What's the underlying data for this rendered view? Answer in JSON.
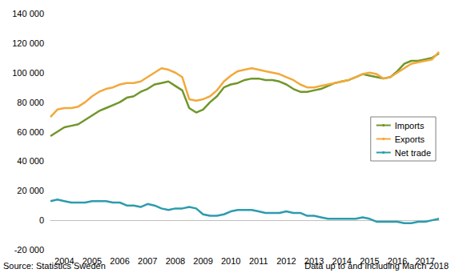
{
  "chart_data": {
    "type": "line",
    "source": "Source: Statistics Sweden",
    "note": "Data up to and including March 2018",
    "categories": [
      null,
      null,
      "2004",
      null,
      null,
      null,
      "2005",
      null,
      null,
      null,
      "2006",
      null,
      null,
      null,
      "2007",
      null,
      null,
      null,
      "2008",
      null,
      null,
      null,
      "2009",
      null,
      null,
      null,
      "2010",
      null,
      null,
      null,
      "2011",
      null,
      null,
      null,
      "2012",
      null,
      null,
      null,
      "2013",
      null,
      null,
      null,
      "2014",
      null,
      null,
      null,
      "2015",
      null,
      null,
      null,
      "2016",
      null,
      null,
      null,
      "2017",
      null,
      null
    ],
    "series": [
      {
        "name": "Imports",
        "color": "#70972a",
        "values": [
          57000,
          60000,
          63000,
          64000,
          65000,
          68000,
          71000,
          74000,
          76000,
          78000,
          80000,
          83000,
          84000,
          87000,
          89000,
          92000,
          93000,
          94000,
          91000,
          88000,
          76000,
          73000,
          75000,
          80000,
          84000,
          90000,
          92000,
          93000,
          95000,
          96000,
          96000,
          95000,
          95000,
          94000,
          92000,
          89000,
          87000,
          87000,
          88000,
          89000,
          91000,
          93000,
          94000,
          95000,
          97000,
          99000,
          98000,
          97000,
          96000,
          97000,
          101000,
          106000,
          108000,
          108000,
          109000,
          110000,
          113000
        ]
      },
      {
        "name": "Exports",
        "color": "#f2a93b",
        "values": [
          70000,
          75000,
          76000,
          76000,
          77000,
          80000,
          84000,
          87000,
          89000,
          90000,
          92000,
          93000,
          93000,
          94000,
          97000,
          100000,
          103000,
          102000,
          100000,
          97000,
          82000,
          81000,
          82000,
          84000,
          88000,
          94000,
          98000,
          101000,
          102000,
          103000,
          102000,
          101000,
          100000,
          99000,
          97000,
          95000,
          92000,
          90000,
          90000,
          91000,
          92000,
          93000,
          94000,
          95000,
          97000,
          99000,
          100000,
          99000,
          96000,
          97000,
          100000,
          103000,
          106000,
          107000,
          108000,
          109000,
          114000
        ]
      },
      {
        "name": "Net trade",
        "color": "#2c9cae",
        "values": [
          13000,
          14000,
          13000,
          12000,
          12000,
          12000,
          13000,
          13000,
          13000,
          12000,
          12000,
          10000,
          10000,
          9000,
          11000,
          10000,
          8000,
          7000,
          8000,
          8000,
          9000,
          8000,
          4000,
          3000,
          3000,
          4000,
          6000,
          7000,
          7000,
          7000,
          6000,
          5000,
          5000,
          5000,
          6000,
          5000,
          5000,
          3000,
          3000,
          2000,
          1000,
          1000,
          1000,
          1000,
          1000,
          2000,
          1000,
          -1000,
          -1000,
          -1000,
          -1000,
          -2000,
          -2000,
          -1000,
          -1000,
          0,
          1000
        ]
      }
    ],
    "ylim": [
      -20000,
      140000
    ],
    "yticks": [
      {
        "value": -20000,
        "label": "-20 000"
      },
      0,
      {
        "value": 20000,
        "label": "20 000"
      },
      {
        "value": 40000,
        "label": "40 000"
      },
      {
        "value": 60000,
        "label": "60 000"
      },
      {
        "value": 80000,
        "label": "80 000"
      },
      {
        "value": 100000,
        "label": "100 000"
      },
      {
        "value": 120000,
        "label": "120 000"
      },
      {
        "value": 140000,
        "label": "140 000"
      }
    ],
    "grid": false,
    "legend": "right"
  }
}
